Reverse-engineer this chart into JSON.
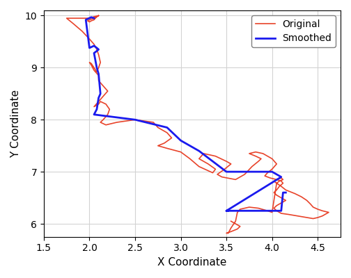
{
  "xlabel": "X Coordinate",
  "ylabel": "Y Coordinate",
  "xlim": [
    1.5,
    4.75
  ],
  "ylim": [
    5.75,
    10.1
  ],
  "xticks": [
    1.5,
    2.0,
    2.5,
    3.0,
    3.5,
    4.0,
    4.5
  ],
  "yticks": [
    6,
    7,
    8,
    9,
    10
  ],
  "original_color": "#e8432a",
  "smoothed_color": "#1a1aee",
  "original_lw": 1.2,
  "smoothed_lw": 2.0,
  "legend_loc": "upper right",
  "original_x": [
    2.05,
    2.08,
    2.1,
    2.08,
    2.05,
    2.0,
    1.98,
    2.0,
    2.02,
    2.05,
    2.08,
    2.1,
    2.05,
    2.0,
    1.75,
    1.82,
    1.92,
    2.0,
    2.05,
    2.08,
    2.1,
    2.12,
    2.1,
    2.08,
    2.05,
    2.02,
    2.0,
    2.02,
    2.05,
    2.1,
    2.1,
    2.15,
    2.2,
    2.15,
    2.1,
    2.05,
    2.1,
    2.12,
    2.18,
    2.22,
    2.2,
    2.15,
    2.12,
    2.18,
    2.3,
    2.5,
    2.7,
    2.75,
    2.85,
    2.9,
    2.82,
    2.75,
    2.85,
    3.0,
    3.1,
    3.2,
    3.35,
    3.38,
    3.3,
    3.2,
    3.25,
    3.38,
    3.5,
    3.55,
    3.48,
    3.4,
    3.45,
    3.6,
    3.7,
    3.78,
    3.85,
    3.88,
    3.82,
    3.75,
    3.82,
    3.9,
    4.0,
    4.05,
    4.0,
    3.95,
    3.92,
    3.98,
    4.05,
    4.1,
    4.12,
    4.08,
    4.05,
    4.02,
    4.05,
    4.1,
    4.15,
    4.12,
    4.1,
    4.05,
    4.02,
    4.05,
    4.1,
    4.18,
    4.28,
    4.38,
    4.45,
    4.5,
    4.55,
    4.58,
    4.62,
    4.55,
    4.5,
    4.45,
    4.42,
    4.38,
    4.32,
    4.25,
    4.15,
    4.1,
    4.05,
    4.02,
    4.05,
    4.1,
    4.12,
    4.08,
    4.05,
    4.0,
    3.95,
    3.85,
    3.75,
    3.65,
    3.62,
    3.6,
    3.55,
    3.52,
    3.5,
    3.55,
    3.62,
    3.65,
    3.6,
    3.55
  ],
  "original_y": [
    9.95,
    9.98,
    10.0,
    9.98,
    9.95,
    9.92,
    9.9,
    9.88,
    9.9,
    9.92,
    9.98,
    10.0,
    9.98,
    9.95,
    9.95,
    9.85,
    9.7,
    9.55,
    9.45,
    9.35,
    9.25,
    9.1,
    9.0,
    8.92,
    9.0,
    9.08,
    9.1,
    9.05,
    8.95,
    8.85,
    8.75,
    8.65,
    8.55,
    8.45,
    8.35,
    8.25,
    8.3,
    8.35,
    8.3,
    8.2,
    8.1,
    8.0,
    7.95,
    7.9,
    7.95,
    8.0,
    7.95,
    7.85,
    7.75,
    7.65,
    7.55,
    7.5,
    7.45,
    7.38,
    7.25,
    7.1,
    6.98,
    7.05,
    7.15,
    7.25,
    7.35,
    7.3,
    7.2,
    7.15,
    7.05,
    6.95,
    6.9,
    6.85,
    6.95,
    7.1,
    7.2,
    7.25,
    7.3,
    7.35,
    7.38,
    7.35,
    7.25,
    7.15,
    7.05,
    6.98,
    6.92,
    6.88,
    6.85,
    6.82,
    6.78,
    6.72,
    6.65,
    6.6,
    6.55,
    6.5,
    6.45,
    6.42,
    6.4,
    6.35,
    6.3,
    6.25,
    6.2,
    6.18,
    6.15,
    6.12,
    6.1,
    6.12,
    6.15,
    6.18,
    6.22,
    6.25,
    6.28,
    6.32,
    6.38,
    6.45,
    6.52,
    6.58,
    6.65,
    6.72,
    6.78,
    6.82,
    6.85,
    6.88,
    6.85,
    6.82,
    6.78,
    6.22,
    6.25,
    6.3,
    6.32,
    6.28,
    6.22,
    6.05,
    5.92,
    5.82,
    5.82,
    5.85,
    5.9,
    5.95,
    6.0,
    6.05
  ],
  "smoothed_x": [
    2.05,
    2.02,
    1.96,
    2.0,
    2.05,
    2.08,
    2.1,
    2.08,
    2.05,
    2.08,
    2.1,
    2.12,
    2.1,
    2.08,
    2.05,
    2.5,
    2.85,
    3.0,
    3.1,
    3.2,
    3.5,
    3.55,
    3.6,
    3.7,
    3.85,
    4.0,
    4.05,
    4.1,
    3.5,
    3.52,
    3.5,
    4.1,
    4.12,
    4.15
  ],
  "smoothed_y": [
    9.95,
    9.97,
    9.92,
    9.38,
    9.42,
    9.38,
    9.35,
    9.32,
    9.28,
    9.0,
    8.88,
    8.5,
    8.42,
    8.2,
    8.1,
    8.0,
    7.85,
    7.6,
    7.5,
    7.4,
    7.0,
    7.0,
    7.0,
    7.0,
    7.0,
    7.0,
    6.95,
    6.9,
    6.25,
    6.25,
    6.25,
    6.25,
    6.6,
    6.6
  ]
}
